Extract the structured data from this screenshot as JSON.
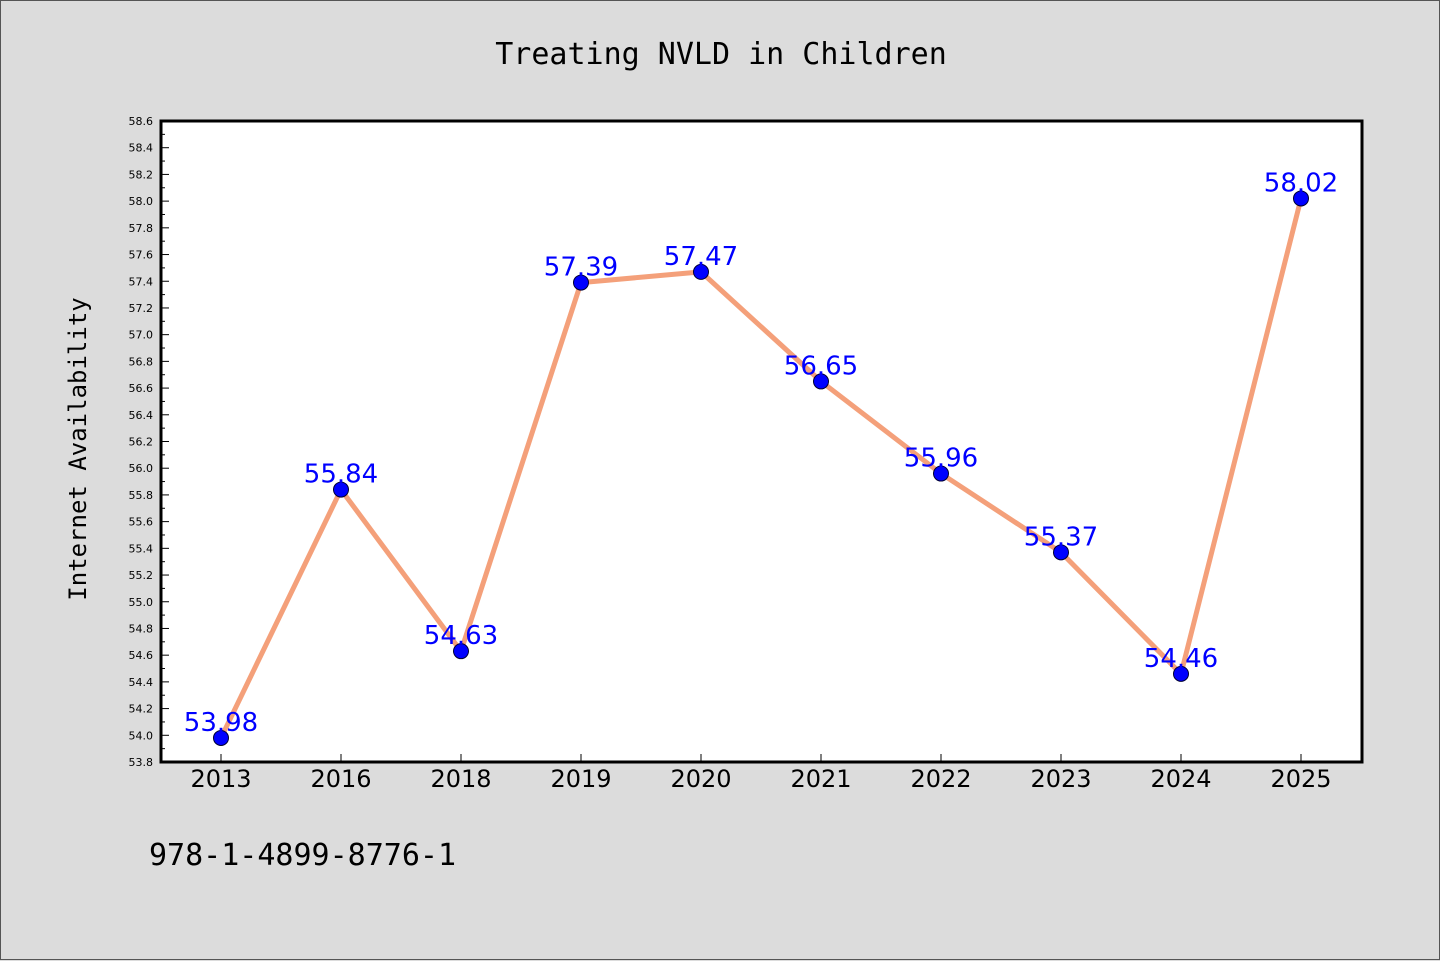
{
  "chart_data": {
    "type": "line",
    "title": "Treating NVLD in Children",
    "xlabel": "",
    "ylabel": "Internet Availability",
    "categories": [
      "2013",
      "2016",
      "2018",
      "2019",
      "2020",
      "2021",
      "2022",
      "2023",
      "2024",
      "2025"
    ],
    "series": [
      {
        "values": [
          53.98,
          55.84,
          54.63,
          57.39,
          57.47,
          56.65,
          55.96,
          55.37,
          54.46,
          58.02
        ],
        "line_color": "#f4a07a",
        "marker_color": "#0000ff"
      }
    ],
    "data_labels": [
      "53.98",
      "55.84",
      "54.63",
      "57.39",
      "57.47",
      "56.65",
      "55.96",
      "55.37",
      "54.46",
      "58.02"
    ],
    "ylim": [
      53.8,
      58.6
    ],
    "yticks": [
      "53.8",
      "54.0",
      "54.2",
      "54.4",
      "54.6",
      "54.8",
      "55.0",
      "55.2",
      "55.4",
      "55.6",
      "55.8",
      "56.0",
      "56.2",
      "56.4",
      "56.6",
      "56.8",
      "57.0",
      "57.2",
      "57.4",
      "57.6",
      "57.8",
      "58.0",
      "58.2",
      "58.4",
      "58.6"
    ],
    "grid": false,
    "legend": "none"
  },
  "footer": {
    "isbn": "978-1-4899-8776-1"
  }
}
